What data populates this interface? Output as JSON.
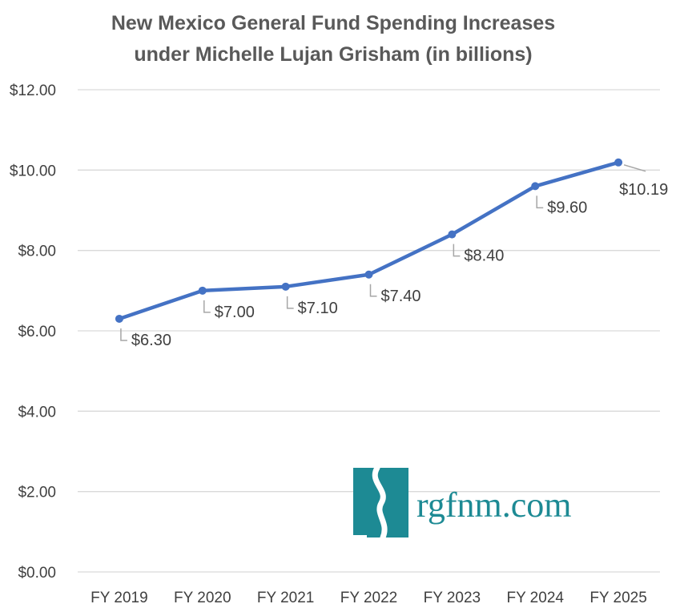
{
  "chart_data": {
    "type": "line",
    "title": [
      "New Mexico General Fund Spending Increases",
      "under Michelle Lujan Grisham (in billions)"
    ],
    "categories": [
      "FY 2019",
      "FY 2020",
      "FY 2021",
      "FY 2022",
      "FY 2023",
      "FY 2024",
      "FY 2025"
    ],
    "series": [
      {
        "values": [
          6.3,
          7.0,
          7.1,
          7.4,
          8.4,
          9.6,
          10.19
        ],
        "labels": [
          "$6.30",
          "$7.00",
          "$7.10",
          "$7.40",
          "$8.40",
          "$9.60",
          "$10.19"
        ],
        "color": "#4472c4"
      }
    ],
    "y_ticks": [
      0,
      2,
      4,
      6,
      8,
      10,
      12
    ],
    "y_tick_labels": [
      "$0.00",
      "$2.00",
      "$4.00",
      "$6.00",
      "$8.00",
      "$10.00",
      "$12.00"
    ],
    "ylim": [
      0,
      12
    ],
    "grid": true,
    "legend": "none",
    "colors": {
      "line": "#4472c4",
      "grid": "#d9d9d9",
      "leader": "#a6a6a6",
      "text": "#404040",
      "title": "#595959"
    }
  },
  "logo": {
    "text": "rgfnm.com",
    "color": "#1d8a94"
  }
}
